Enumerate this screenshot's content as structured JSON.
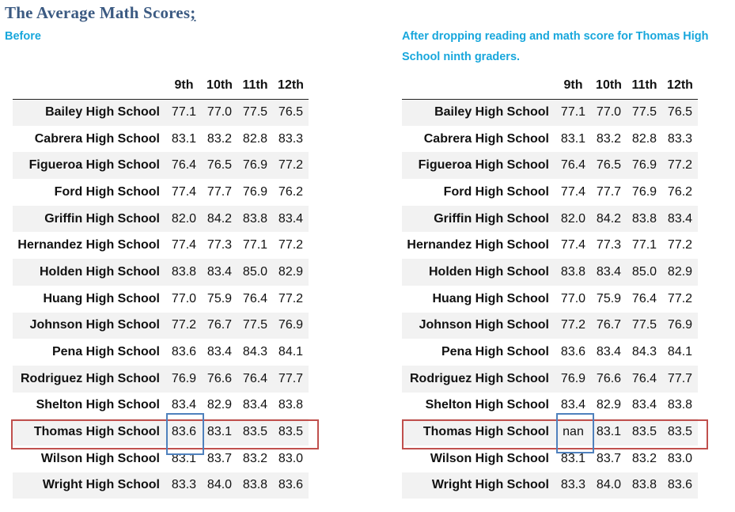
{
  "title": {
    "text": "The Average Math Scores",
    "suffix": ";"
  },
  "left": {
    "caption": "Before"
  },
  "right": {
    "caption": "After dropping reading and math score for Thomas High School ninth graders."
  },
  "columns": [
    "9th",
    "10th",
    "11th",
    "12th"
  ],
  "highlight_colors": {
    "row": "#c0504d",
    "cell": "#4f81bd"
  },
  "before_rows": [
    {
      "school": "Bailey High School",
      "values": [
        "77.1",
        "77.0",
        "77.5",
        "76.5"
      ]
    },
    {
      "school": "Cabrera High School",
      "values": [
        "83.1",
        "83.2",
        "82.8",
        "83.3"
      ]
    },
    {
      "school": "Figueroa High School",
      "values": [
        "76.4",
        "76.5",
        "76.9",
        "77.2"
      ]
    },
    {
      "school": "Ford High School",
      "values": [
        "77.4",
        "77.7",
        "76.9",
        "76.2"
      ]
    },
    {
      "school": "Griffin High School",
      "values": [
        "82.0",
        "84.2",
        "83.8",
        "83.4"
      ]
    },
    {
      "school": "Hernandez High School",
      "values": [
        "77.4",
        "77.3",
        "77.1",
        "77.2"
      ]
    },
    {
      "school": "Holden High School",
      "values": [
        "83.8",
        "83.4",
        "85.0",
        "82.9"
      ]
    },
    {
      "school": "Huang High School",
      "values": [
        "77.0",
        "75.9",
        "76.4",
        "77.2"
      ]
    },
    {
      "school": "Johnson High School",
      "values": [
        "77.2",
        "76.7",
        "77.5",
        "76.9"
      ]
    },
    {
      "school": "Pena High School",
      "values": [
        "83.6",
        "83.4",
        "84.3",
        "84.1"
      ]
    },
    {
      "school": "Rodriguez High School",
      "values": [
        "76.9",
        "76.6",
        "76.4",
        "77.7"
      ]
    },
    {
      "school": "Shelton High School",
      "values": [
        "83.4",
        "82.9",
        "83.4",
        "83.8"
      ]
    },
    {
      "school": "Thomas High School",
      "values": [
        "83.6",
        "83.1",
        "83.5",
        "83.5"
      ]
    },
    {
      "school": "Wilson High School",
      "values": [
        "83.1",
        "83.7",
        "83.2",
        "83.0"
      ]
    },
    {
      "school": "Wright High School",
      "values": [
        "83.3",
        "84.0",
        "83.8",
        "83.6"
      ]
    }
  ],
  "after_rows": [
    {
      "school": "Bailey High School",
      "values": [
        "77.1",
        "77.0",
        "77.5",
        "76.5"
      ]
    },
    {
      "school": "Cabrera High School",
      "values": [
        "83.1",
        "83.2",
        "82.8",
        "83.3"
      ]
    },
    {
      "school": "Figueroa High School",
      "values": [
        "76.4",
        "76.5",
        "76.9",
        "77.2"
      ]
    },
    {
      "school": "Ford High School",
      "values": [
        "77.4",
        "77.7",
        "76.9",
        "76.2"
      ]
    },
    {
      "school": "Griffin High School",
      "values": [
        "82.0",
        "84.2",
        "83.8",
        "83.4"
      ]
    },
    {
      "school": "Hernandez High School",
      "values": [
        "77.4",
        "77.3",
        "77.1",
        "77.2"
      ]
    },
    {
      "school": "Holden High School",
      "values": [
        "83.8",
        "83.4",
        "85.0",
        "82.9"
      ]
    },
    {
      "school": "Huang High School",
      "values": [
        "77.0",
        "75.9",
        "76.4",
        "77.2"
      ]
    },
    {
      "school": "Johnson High School",
      "values": [
        "77.2",
        "76.7",
        "77.5",
        "76.9"
      ]
    },
    {
      "school": "Pena High School",
      "values": [
        "83.6",
        "83.4",
        "84.3",
        "84.1"
      ]
    },
    {
      "school": "Rodriguez High School",
      "values": [
        "76.9",
        "76.6",
        "76.4",
        "77.7"
      ]
    },
    {
      "school": "Shelton High School",
      "values": [
        "83.4",
        "82.9",
        "83.4",
        "83.8"
      ]
    },
    {
      "school": "Thomas High School",
      "values": [
        "nan",
        "83.1",
        "83.5",
        "83.5"
      ]
    },
    {
      "school": "Wilson High School",
      "values": [
        "83.1",
        "83.7",
        "83.2",
        "83.0"
      ]
    },
    {
      "school": "Wright High School",
      "values": [
        "83.3",
        "84.0",
        "83.8",
        "83.6"
      ]
    }
  ]
}
